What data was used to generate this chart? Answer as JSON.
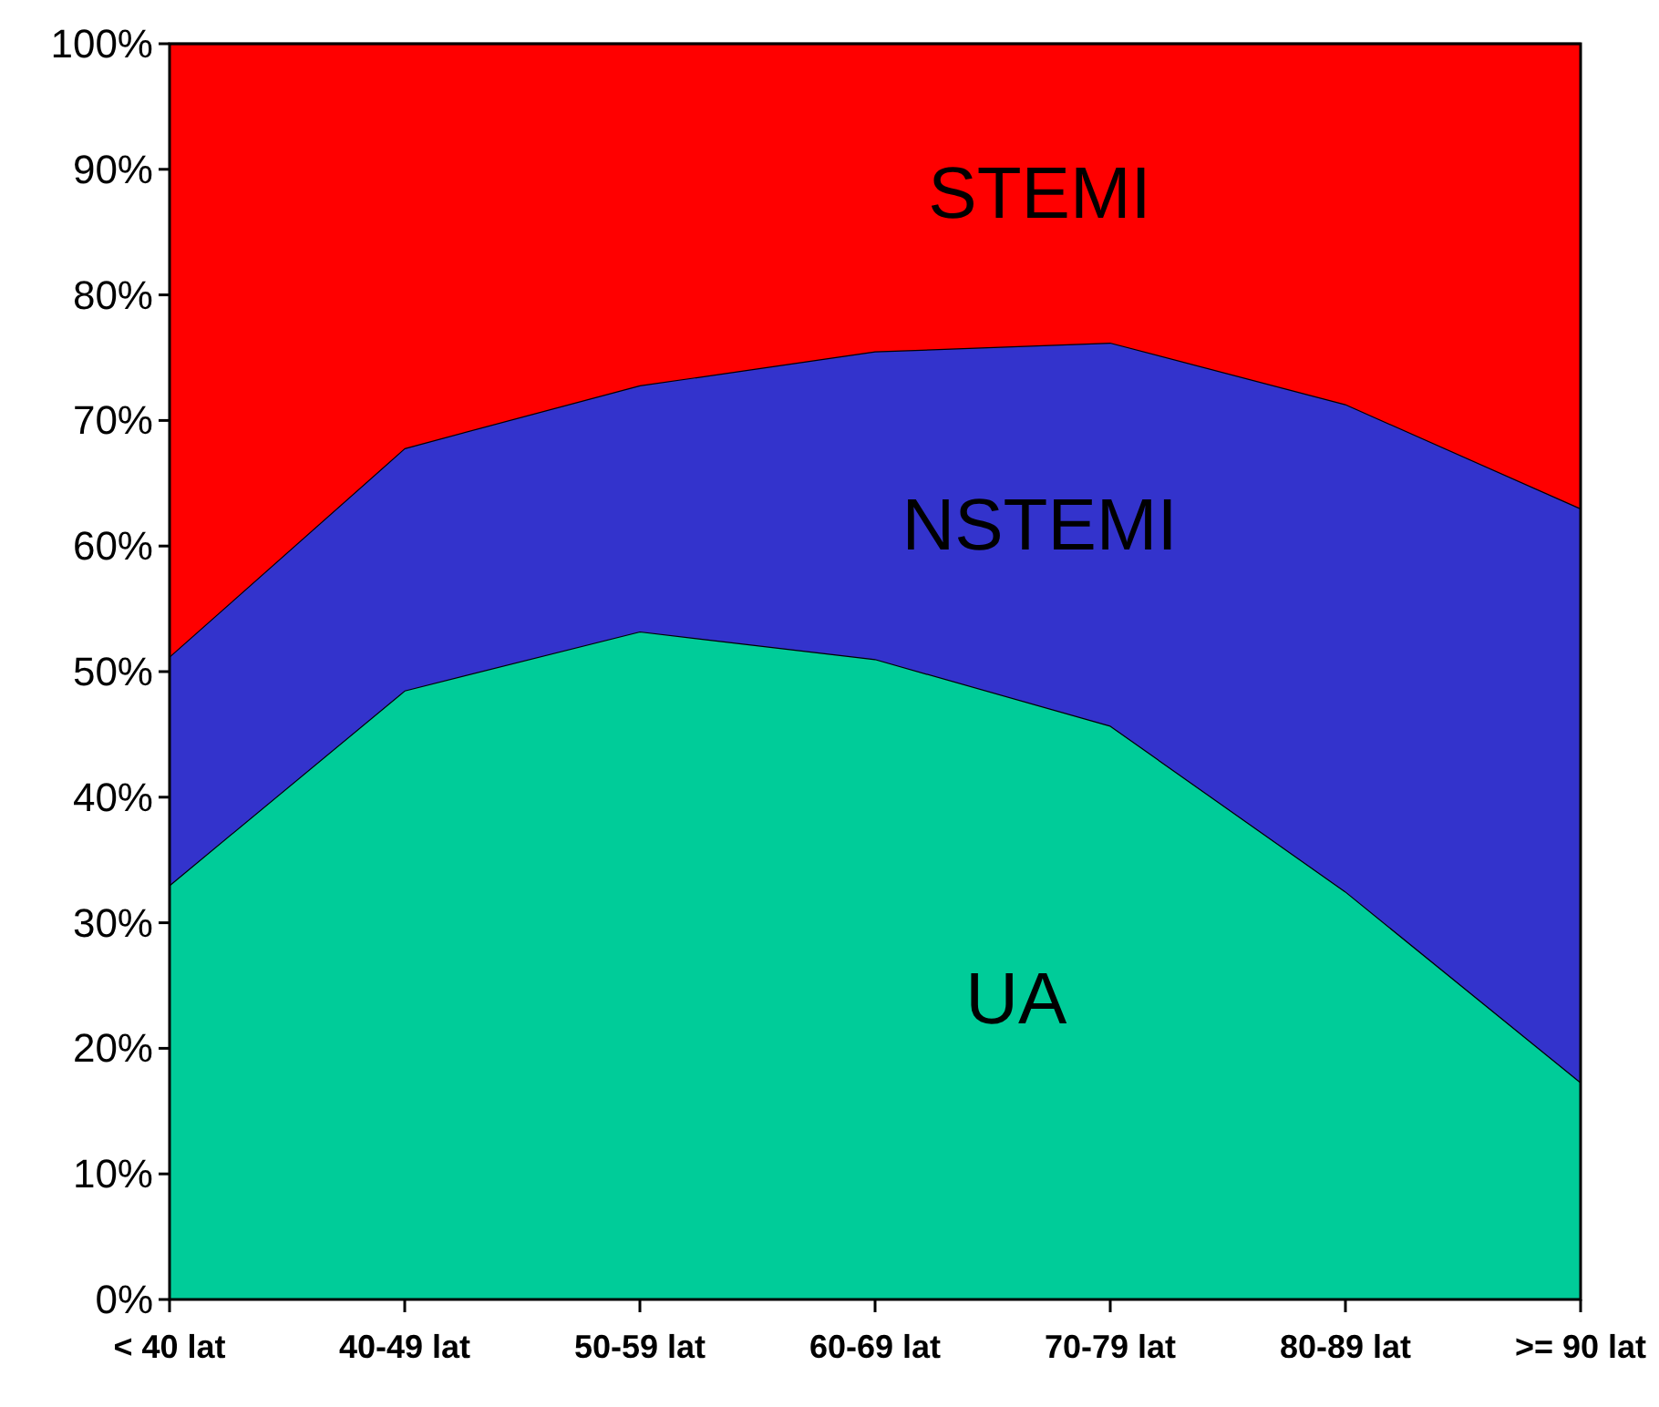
{
  "chart_data": {
    "type": "area",
    "stacked": true,
    "categories": [
      "< 40 lat",
      "40-49 lat",
      "50-59 lat",
      "60-69 lat",
      "70-79 lat",
      "80-89 lat",
      ">= 90 lat"
    ],
    "series": [
      {
        "name": "UA",
        "color": "#00cc99",
        "values": [
          33,
          48.5,
          53.2,
          51,
          45.7,
          32.5,
          17.3
        ]
      },
      {
        "name": "NSTEMI",
        "color": "#3333cc",
        "values": [
          18.2,
          19.3,
          19.6,
          24.5,
          30.5,
          38.8,
          45.7
        ]
      },
      {
        "name": "STEMI",
        "color": "#ff0000",
        "values": [
          48.8,
          32.2,
          27.2,
          24.5,
          23.8,
          28.7,
          37
        ]
      }
    ],
    "ylim": [
      0,
      100
    ],
    "yticks": [
      {
        "value": 0,
        "label": "0%"
      },
      {
        "value": 10,
        "label": "10%"
      },
      {
        "value": 20,
        "label": "20%"
      },
      {
        "value": 30,
        "label": "30%"
      },
      {
        "value": 40,
        "label": "40%"
      },
      {
        "value": 50,
        "label": "50%"
      },
      {
        "value": 60,
        "label": "60%"
      },
      {
        "value": 70,
        "label": "70%"
      },
      {
        "value": 80,
        "label": "80%"
      },
      {
        "value": 90,
        "label": "90%"
      },
      {
        "value": 100,
        "label": "100%"
      }
    ],
    "grid": false,
    "legend": false
  }
}
